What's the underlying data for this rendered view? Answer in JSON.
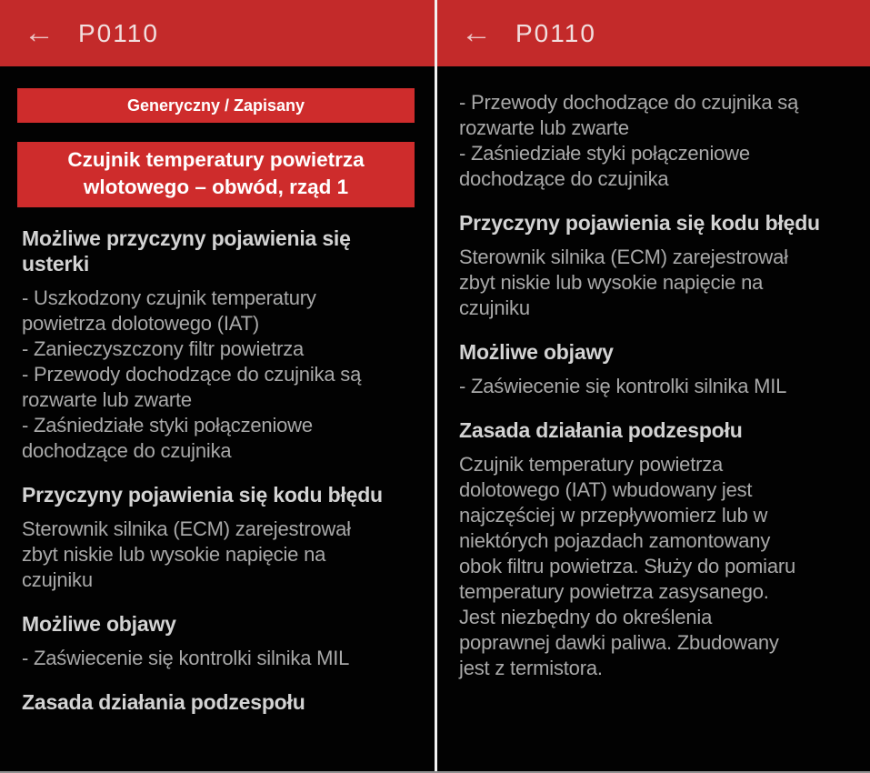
{
  "app": {
    "code": "P0110",
    "colors": {
      "header_red": "#c32a2a",
      "box_red": "#ce2c2c",
      "background": "#020202",
      "heading_text": "#d3d3d3",
      "body_text": "#a9a9a9",
      "divider": "#f2f2f2"
    }
  },
  "left_panel": {
    "header": {
      "back_icon": "←",
      "title": "P0110"
    },
    "status_badge": "Generyczny / Zapisany",
    "dtc_title": "Czujnik temperatury powietrza\nwlotowego – obwód, rząd 1",
    "sections": [
      {
        "type": "heading",
        "text": "Możliwe przyczyny pojawienia się\nusterki"
      },
      {
        "type": "body",
        "text": "- Uszkodzony czujnik temperatury\npowietrza dolotowego (IAT)\n- Zanieczyszczony filtr powietrza\n- Przewody dochodzące do czujnika są\nrozwarte lub zwarte\n- Zaśniedziałe styki połączeniowe\ndochodzące do czujnika"
      },
      {
        "type": "heading",
        "text": "Przyczyny pojawienia się kodu błędu"
      },
      {
        "type": "body",
        "text": "Sterownik silnika (ECM) zarejestrował\nzbyt niskie lub wysokie napięcie na\nczujniku"
      },
      {
        "type": "heading",
        "text": "Możliwe objawy"
      },
      {
        "type": "body",
        "text": "- Zaświecenie się kontrolki silnika MIL"
      },
      {
        "type": "heading",
        "text": "Zasada działania podzespołu"
      }
    ]
  },
  "right_panel": {
    "header": {
      "back_icon": "←",
      "title": "P0110"
    },
    "sections": [
      {
        "type": "body",
        "text": "- Przewody dochodzące do czujnika są\nrozwarte lub zwarte\n- Zaśniedziałe styki połączeniowe\ndochodzące do czujnika"
      },
      {
        "type": "heading",
        "text": "Przyczyny pojawienia się kodu błędu"
      },
      {
        "type": "body",
        "text": "Sterownik silnika (ECM) zarejestrował\nzbyt niskie lub wysokie napięcie na\nczujniku"
      },
      {
        "type": "heading",
        "text": "Możliwe objawy"
      },
      {
        "type": "body",
        "text": "- Zaświecenie się kontrolki silnika MIL"
      },
      {
        "type": "heading",
        "text": "Zasada działania podzespołu"
      },
      {
        "type": "body",
        "text": "Czujnik temperatury powietrza\ndolotowego (IAT) wbudowany jest\nnajczęściej w przepływomierz lub w\nniektórych pojazdach zamontowany\nobok filtru powietrza. Służy do pomiaru\ntemperatury powietrza zasysanego.\nJest niezbędny do określenia\npoprawnej dawki paliwa. Zbudowany\njest z termistora."
      }
    ]
  }
}
